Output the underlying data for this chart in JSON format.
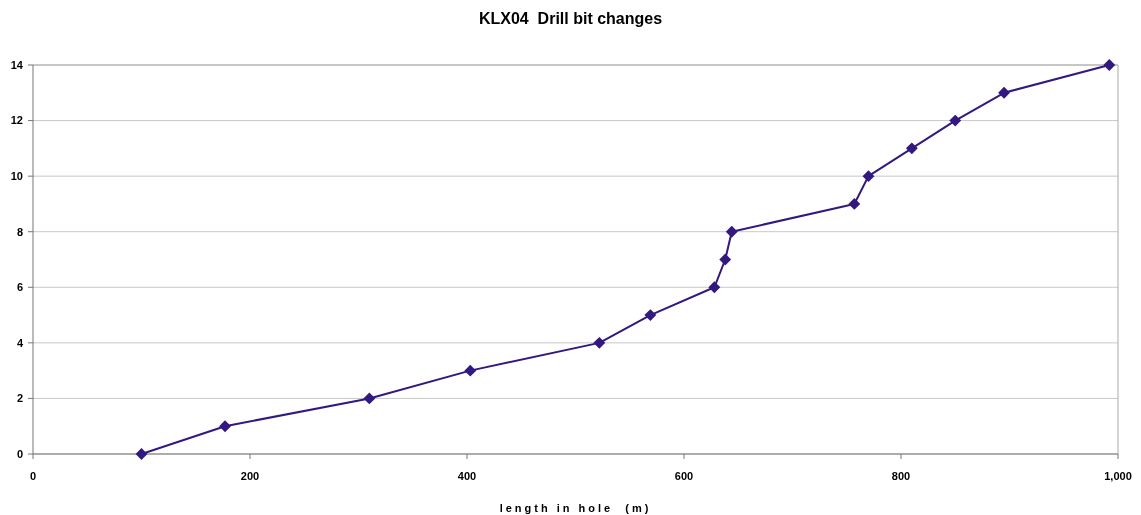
{
  "chart_data": {
    "type": "line",
    "title": "KLX04  Drill bit changes",
    "xlabel": "length in hole  (m)",
    "x": [
      100,
      177,
      310,
      403,
      522,
      569,
      628,
      638,
      644,
      757,
      770,
      810,
      850,
      895,
      992
    ],
    "series": [
      {
        "color": "#33187f",
        "values": [
          0,
          1,
          2,
          3,
          4,
          5,
          6,
          7,
          8,
          9,
          10,
          11,
          12,
          13,
          14
        ]
      }
    ],
    "xlim": [
      0,
      1000
    ],
    "xticks": [
      0,
      200,
      400,
      600,
      800,
      {
        "value": 1000,
        "label": "1,000"
      }
    ],
    "ylim": [
      0,
      14
    ],
    "yticks": [
      0,
      2,
      4,
      6,
      8,
      10,
      12,
      14
    ],
    "grid": "y",
    "marker": "diamond",
    "line_style": "solid"
  }
}
